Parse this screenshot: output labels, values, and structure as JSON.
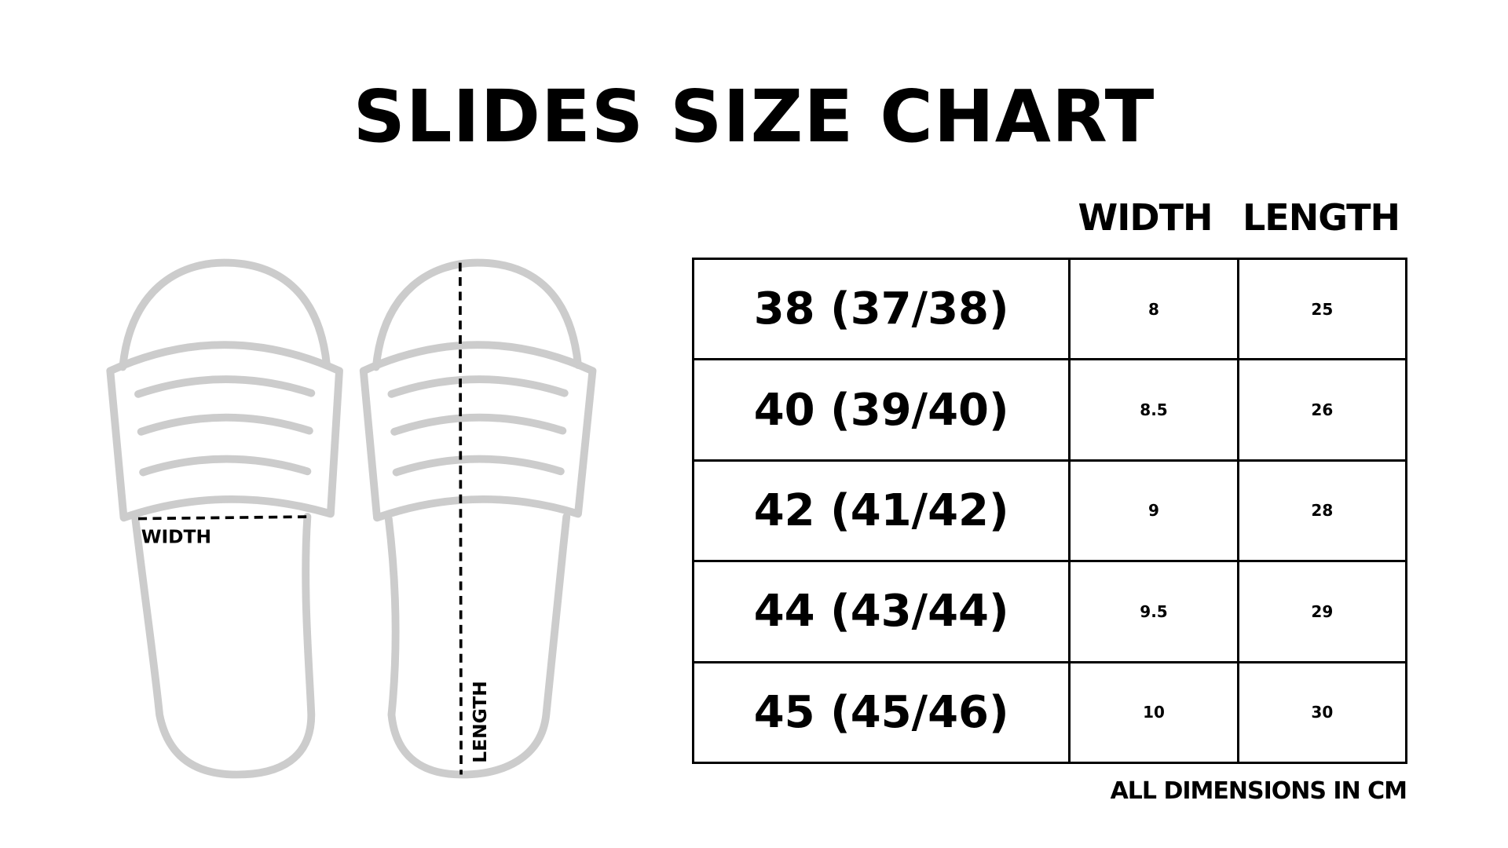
{
  "title": "SLIDES SIZE CHART",
  "diagram": {
    "width_label": "WIDTH",
    "length_label": "LENGTH",
    "outline_color": "#cccccc"
  },
  "table": {
    "headers": {
      "width": "WIDTH",
      "length": "LENGTH"
    },
    "rows": [
      {
        "size": "38 (37/38)",
        "width": "8",
        "length": "25"
      },
      {
        "size": "40 (39/40)",
        "width": "8.5",
        "length": "26"
      },
      {
        "size": "42 (41/42)",
        "width": "9",
        "length": "28"
      },
      {
        "size": "44 (43/44)",
        "width": "9.5",
        "length": "29"
      },
      {
        "size": "45 (45/46)",
        "width": "10",
        "length": "30"
      }
    ]
  },
  "footnote": "ALL DIMENSIONS IN CM"
}
